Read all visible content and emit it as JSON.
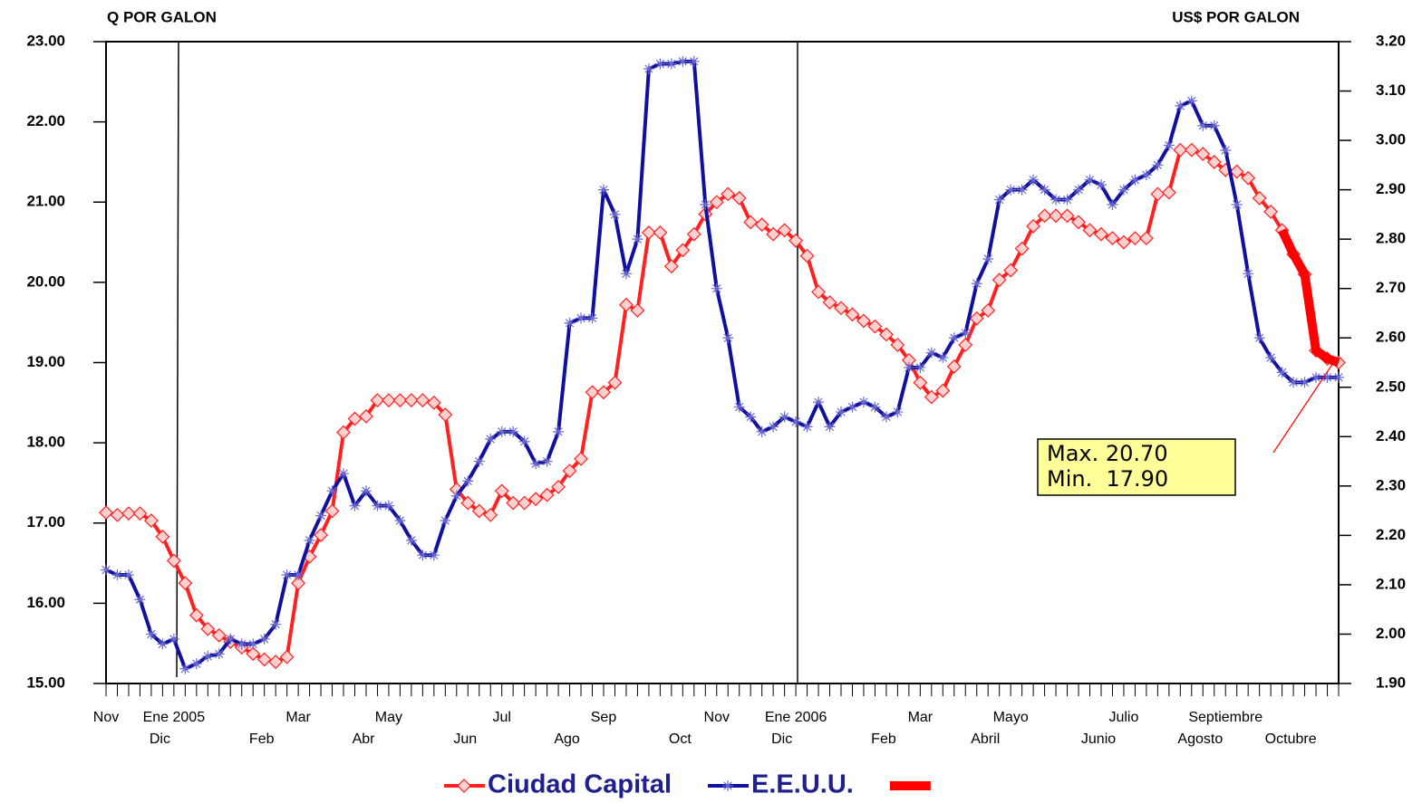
{
  "chart_data": {
    "type": "line",
    "y_axis_label": "Q POR GALON",
    "y2_axis_label": "US$ POR GALON",
    "annotation": [
      "Max. 20.70",
      "Min.  17.90"
    ],
    "categories": [
      "Nov",
      null,
      null,
      "Dic",
      null,
      null,
      "Ene 2005",
      null,
      null,
      null,
      null,
      null,
      "Feb",
      null,
      null,
      null,
      null,
      "Mar",
      null,
      null,
      null,
      "Abr",
      null,
      null,
      null,
      "May",
      null,
      null,
      null,
      null,
      "Jun",
      null,
      null,
      null,
      null,
      "Jul",
      null,
      null,
      null,
      "Ago",
      null,
      null,
      null,
      null,
      "Sep",
      null,
      null,
      null,
      null,
      "Oct",
      null,
      null,
      null,
      null,
      "Nov",
      null,
      null,
      null,
      "Dic",
      null,
      null,
      "Ene 2006",
      null,
      null,
      null,
      null,
      null,
      "Feb",
      null,
      null,
      null,
      null,
      "Mar",
      null,
      null,
      null,
      "Abril",
      null,
      null,
      null,
      "Mayo",
      null,
      null,
      null,
      null,
      null,
      "Junio",
      null,
      null,
      null,
      "Julio",
      null,
      null,
      null,
      null,
      "Agosto",
      null,
      null,
      null,
      "Septiembre",
      null,
      null,
      null,
      "Octubre",
      null,
      null,
      null,
      null,
      null,
      null
    ],
    "ylim": [
      15,
      23
    ],
    "yticks": [
      {
        "value": 15,
        "label": "15.00"
      },
      {
        "value": 16,
        "label": "16.00"
      },
      {
        "value": 17,
        "label": "17.00"
      },
      {
        "value": 18,
        "label": "18.00"
      },
      {
        "value": 19,
        "label": "19.00"
      },
      {
        "value": 20,
        "label": "20.00"
      },
      {
        "value": 21,
        "label": "21.00"
      },
      {
        "value": 22,
        "label": "22.00"
      },
      {
        "value": 23,
        "label": "23.00"
      }
    ],
    "y2lim": [
      1.9,
      3.2
    ],
    "y2ticks": [
      {
        "value": 1.9,
        "label": "1.90"
      },
      {
        "value": 2.0,
        "label": "2.00"
      },
      {
        "value": 2.1,
        "label": "2.10"
      },
      {
        "value": 2.2,
        "label": "2.20"
      },
      {
        "value": 2.3,
        "label": "2.30"
      },
      {
        "value": 2.4,
        "label": "2.40"
      },
      {
        "value": 2.5,
        "label": "2.50"
      },
      {
        "value": 2.6,
        "label": "2.60"
      },
      {
        "value": 2.7,
        "label": "2.70"
      },
      {
        "value": 2.8,
        "label": "2.80"
      },
      {
        "value": 2.9,
        "label": "2.90"
      },
      {
        "value": 3.0,
        "label": "3.00"
      },
      {
        "value": 3.1,
        "label": "3.10"
      },
      {
        "value": 3.2,
        "label": "3.20"
      }
    ],
    "grid": false,
    "legend": "bottom",
    "series": [
      {
        "name": "Ciudad Capital",
        "color": "#ff2020",
        "marker": "square",
        "width": 4,
        "axis": "y",
        "values": [
          17.13,
          17.1,
          17.12,
          17.12,
          17.03,
          16.83,
          16.53,
          16.25,
          15.85,
          15.68,
          15.6,
          15.52,
          15.45,
          15.37,
          15.3,
          15.27,
          15.33,
          16.25,
          16.58,
          16.85,
          17.15,
          18.13,
          18.3,
          18.33,
          18.53,
          18.53,
          18.53,
          18.53,
          18.53,
          18.5,
          18.35,
          17.42,
          17.25,
          17.15,
          17.1,
          17.4,
          17.25,
          17.25,
          17.3,
          17.35,
          17.45,
          17.65,
          17.8,
          18.63,
          18.63,
          18.75,
          19.72,
          19.65,
          20.62,
          20.62,
          20.2,
          20.4,
          20.6,
          20.85,
          21.0,
          21.1,
          21.05,
          20.75,
          20.72,
          20.6,
          20.65,
          20.52,
          20.33,
          19.88,
          19.75,
          19.68,
          19.6,
          19.52,
          19.45,
          19.35,
          19.22,
          19.03,
          18.75,
          18.57,
          18.65,
          18.95,
          19.22,
          19.55,
          19.65,
          20.03,
          20.15,
          20.42,
          20.7,
          20.83,
          20.83,
          20.83,
          20.75,
          20.65,
          20.6,
          20.55,
          20.5,
          20.55,
          20.55,
          21.1,
          21.12,
          21.65,
          21.65,
          21.6,
          21.5,
          21.4,
          21.38,
          21.3,
          21.05,
          20.88,
          20.65,
          20.35,
          20.1,
          19.15,
          19.05,
          19.0
        ]
      },
      {
        "name": "E.E.U.U.",
        "color": "#1010a0",
        "marker": "star",
        "width": 4,
        "axis": "y2",
        "values": [
          2.13,
          2.12,
          2.12,
          2.07,
          2.0,
          1.98,
          1.99,
          1.93,
          1.94,
          1.955,
          1.96,
          1.99,
          1.98,
          1.98,
          1.99,
          2.02,
          2.12,
          2.12,
          2.19,
          2.24,
          2.29,
          2.325,
          2.26,
          2.29,
          2.26,
          2.26,
          2.23,
          2.19,
          2.16,
          2.16,
          2.23,
          2.28,
          2.31,
          2.35,
          2.395,
          2.41,
          2.41,
          2.39,
          2.345,
          2.35,
          2.41,
          2.63,
          2.64,
          2.64,
          2.9,
          2.85,
          2.73,
          2.8,
          3.145,
          3.155,
          3.155,
          3.16,
          3.16,
          2.87,
          2.7,
          2.6,
          2.46,
          2.44,
          2.41,
          2.42,
          2.44,
          2.43,
          2.42,
          2.47,
          2.42,
          2.45,
          2.46,
          2.47,
          2.46,
          2.44,
          2.45,
          2.54,
          2.54,
          2.57,
          2.56,
          2.6,
          2.61,
          2.71,
          2.76,
          2.88,
          2.9,
          2.9,
          2.92,
          2.9,
          2.88,
          2.88,
          2.9,
          2.92,
          2.91,
          2.87,
          2.9,
          2.92,
          2.93,
          2.95,
          2.99,
          3.07,
          3.08,
          3.03,
          3.03,
          2.98,
          2.87,
          2.73,
          2.6,
          2.56,
          2.53,
          2.51,
          2.51,
          2.52,
          2.52,
          2.52
        ]
      },
      {
        "color": "#ff0000",
        "marker": "none",
        "width": 10,
        "axis": "y",
        "values": [
          null,
          null,
          null,
          null,
          null,
          null,
          null,
          null,
          null,
          null,
          null,
          null,
          null,
          null,
          null,
          null,
          null,
          null,
          null,
          null,
          null,
          null,
          null,
          null,
          null,
          null,
          null,
          null,
          null,
          null,
          null,
          null,
          null,
          null,
          null,
          null,
          null,
          null,
          null,
          null,
          null,
          null,
          null,
          null,
          null,
          null,
          null,
          null,
          null,
          null,
          null,
          null,
          null,
          null,
          null,
          null,
          null,
          null,
          null,
          null,
          null,
          null,
          null,
          null,
          null,
          null,
          null,
          null,
          null,
          null,
          null,
          null,
          null,
          null,
          null,
          null,
          null,
          null,
          null,
          null,
          null,
          null,
          null,
          null,
          null,
          null,
          null,
          null,
          null,
          null,
          null,
          null,
          null,
          null,
          null,
          null,
          null,
          null,
          null,
          null,
          null,
          null,
          null,
          null,
          20.65,
          20.35,
          20.1,
          19.15,
          19.05,
          19.0
        ]
      }
    ]
  }
}
